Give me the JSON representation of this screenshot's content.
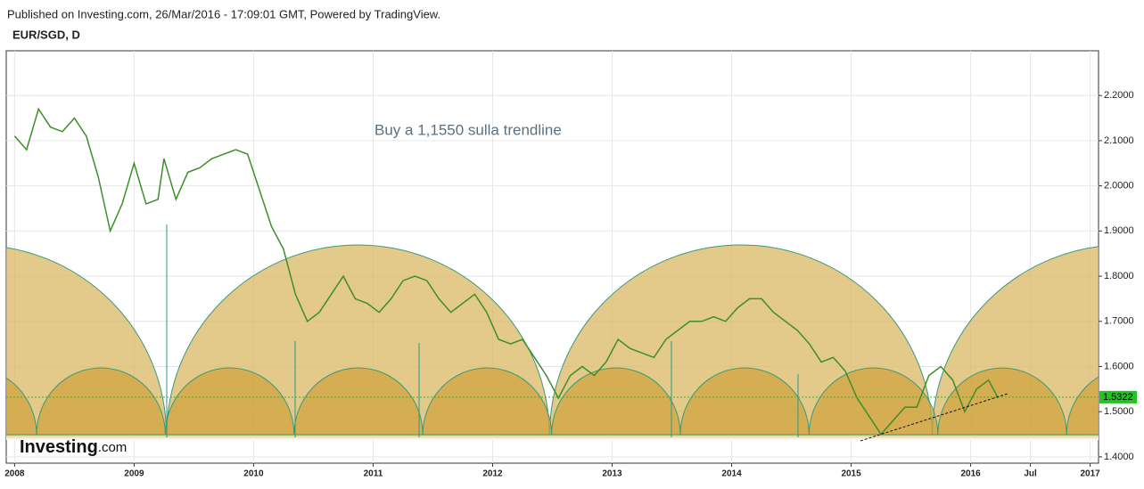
{
  "header": {
    "published": "Published on Investing.com, 26/Mar/2016 - 17:09:01 GMT, Powered by TradingView.",
    "symbol": "EUR/SGD, D"
  },
  "chart_data": {
    "type": "line",
    "annotation": "Buy a 1,1550 sulla trendline",
    "logo": "Investing",
    "logo_suffix": ".com",
    "xlim": [
      2007.93,
      2017.07
    ],
    "xticks": [
      2008,
      2009,
      2010,
      2011,
      2012,
      2013,
      2014,
      2015,
      2016,
      {
        "value": 2016.5,
        "label": "Jul"
      },
      2017
    ],
    "ylim": [
      1.386,
      2.299
    ],
    "yticks": [
      {
        "value": 1.4,
        "label": "1.4000"
      },
      {
        "value": 1.5,
        "label": "1.5000"
      },
      {
        "value": 1.6,
        "label": "1.6000"
      },
      {
        "value": 1.7,
        "label": "1.7000"
      },
      {
        "value": 1.8,
        "label": "1.8000"
      },
      {
        "value": 1.9,
        "label": "1.9000"
      },
      {
        "value": 2.0,
        "label": "2.0000"
      },
      {
        "value": 2.1,
        "label": "2.1000"
      },
      {
        "value": 2.2,
        "label": "2.2000"
      }
    ],
    "grid": true,
    "last_price": {
      "value": 1.5322,
      "label": "1.5322",
      "color": "#22c322"
    },
    "series": [
      {
        "name": "EUR/SGD",
        "color": "#3c8f2a",
        "x": [
          2008.0,
          2008.1,
          2008.2,
          2008.3,
          2008.4,
          2008.5,
          2008.6,
          2008.7,
          2008.8,
          2008.9,
          2009.0,
          2009.1,
          2009.2,
          2009.25,
          2009.35,
          2009.45,
          2009.55,
          2009.65,
          2009.75,
          2009.85,
          2009.95,
          2010.05,
          2010.15,
          2010.25,
          2010.35,
          2010.45,
          2010.55,
          2010.65,
          2010.75,
          2010.85,
          2010.95,
          2011.05,
          2011.15,
          2011.25,
          2011.35,
          2011.45,
          2011.55,
          2011.65,
          2011.75,
          2011.85,
          2011.95,
          2012.05,
          2012.15,
          2012.25,
          2012.35,
          2012.45,
          2012.55,
          2012.65,
          2012.75,
          2012.85,
          2012.95,
          2013.05,
          2013.15,
          2013.25,
          2013.35,
          2013.45,
          2013.55,
          2013.65,
          2013.75,
          2013.85,
          2013.95,
          2014.05,
          2014.15,
          2014.25,
          2014.35,
          2014.45,
          2014.55,
          2014.65,
          2014.75,
          2014.85,
          2014.95,
          2015.05,
          2015.15,
          2015.25,
          2015.35,
          2015.45,
          2015.55,
          2015.65,
          2015.75,
          2015.85,
          2015.95,
          2016.05,
          2016.15,
          2016.23
        ],
        "values": [
          2.11,
          2.08,
          2.17,
          2.13,
          2.12,
          2.15,
          2.11,
          2.02,
          1.9,
          1.96,
          2.05,
          1.96,
          1.97,
          2.06,
          1.97,
          2.03,
          2.04,
          2.06,
          2.07,
          2.08,
          2.07,
          1.99,
          1.91,
          1.86,
          1.76,
          1.7,
          1.72,
          1.76,
          1.8,
          1.75,
          1.74,
          1.72,
          1.75,
          1.79,
          1.8,
          1.79,
          1.75,
          1.72,
          1.74,
          1.76,
          1.72,
          1.66,
          1.65,
          1.66,
          1.62,
          1.58,
          1.53,
          1.58,
          1.6,
          1.58,
          1.61,
          1.66,
          1.64,
          1.63,
          1.62,
          1.66,
          1.68,
          1.7,
          1.7,
          1.71,
          1.7,
          1.73,
          1.75,
          1.75,
          1.72,
          1.7,
          1.68,
          1.65,
          1.61,
          1.62,
          1.59,
          1.53,
          1.49,
          1.45,
          1.48,
          1.51,
          1.51,
          1.58,
          1.6,
          1.57,
          1.5,
          1.55,
          1.57,
          1.53
        ]
      }
    ]
  }
}
